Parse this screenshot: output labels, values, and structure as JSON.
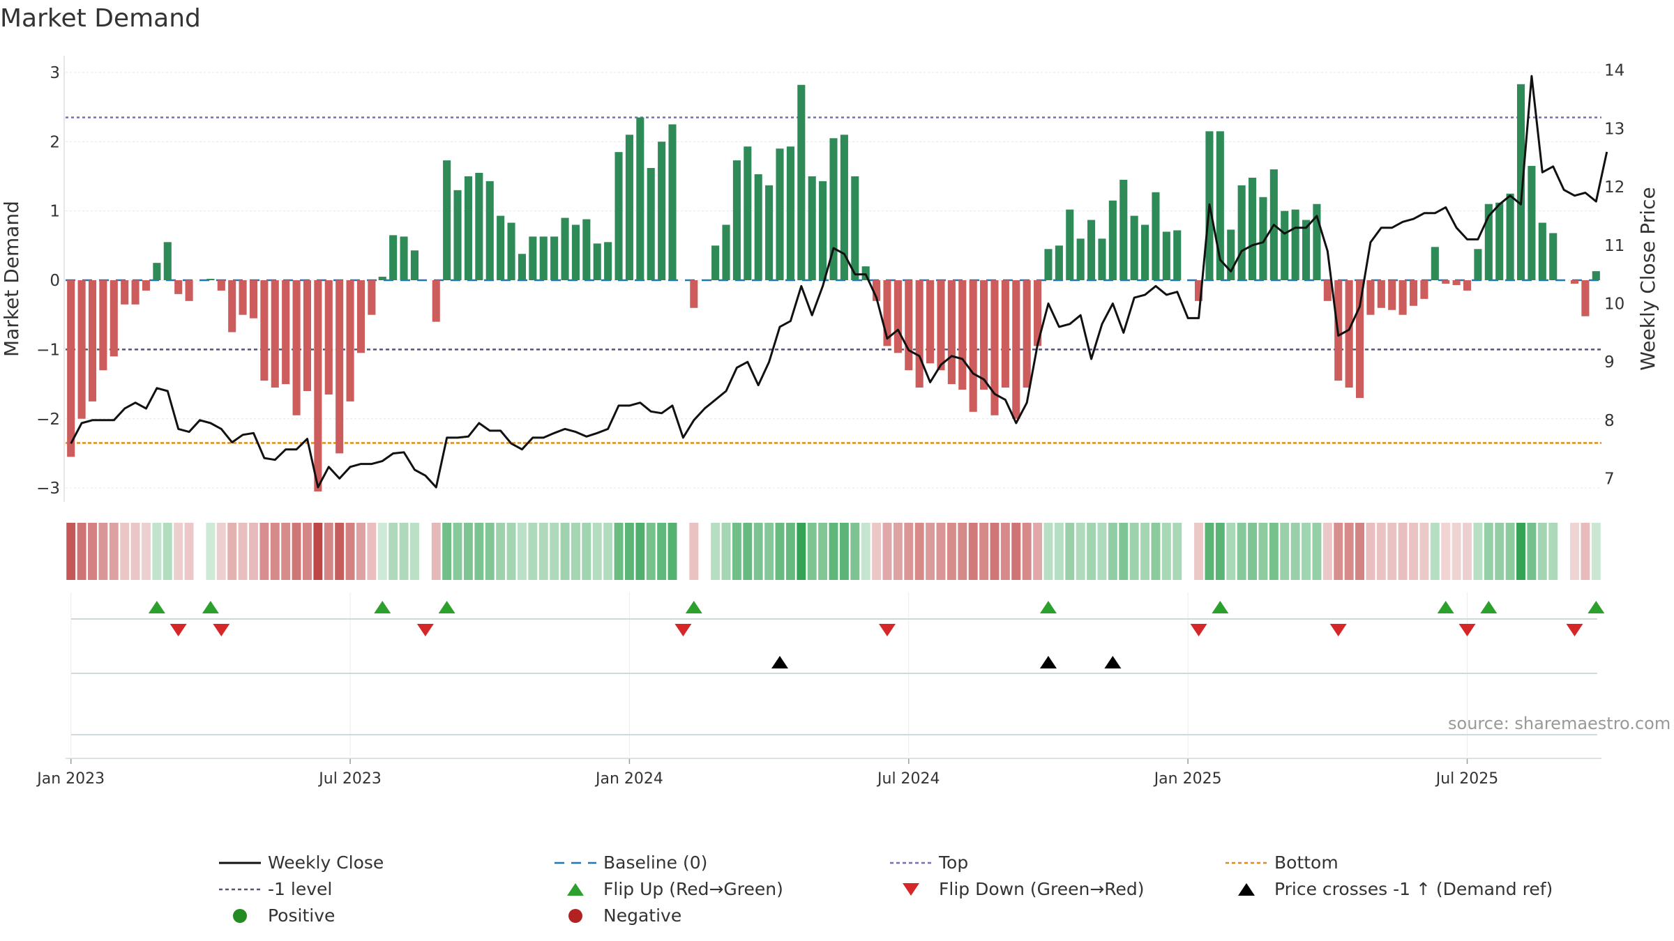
{
  "title": "Market Demand",
  "watermark": "source: sharemaestro.com",
  "colors": {
    "positive_bar": "#2e8b57",
    "negative_bar": "#cd5c5c",
    "price_line": "#111111",
    "baseline": "#1f77b4",
    "top_line": "#7070b8",
    "level_line": "#555577",
    "bottom_line": "#e08a1e",
    "flip_up": "#2ca02c",
    "flip_down": "#d62728",
    "price_cross": "#000000",
    "positive_dot": "#228b22",
    "negative_dot": "#b22222"
  },
  "chart_data": {
    "type": "bar+line",
    "title": "Market Demand",
    "ylabel_left": "Market Demand",
    "ylabel_right": "Weekly Close Price",
    "ylim_left": [
      -3.2,
      3.2
    ],
    "ylim_right": [
      6.6,
      14.2
    ],
    "yticks_left": [
      3,
      2,
      1,
      0,
      -1,
      -2,
      -3
    ],
    "ytick_labels_left": [
      "3",
      "2",
      "1",
      "0",
      "−1",
      "−2",
      "−3"
    ],
    "yticks_right": [
      14,
      13,
      12,
      11,
      10,
      9,
      8,
      7
    ],
    "ytick_labels_right": [
      "14",
      "13",
      "12",
      "11",
      "10",
      "9",
      "8",
      "7"
    ],
    "x_ticks": [
      {
        "week": 1,
        "label": "Jan 2023"
      },
      {
        "week": 27,
        "label": "Jul 2023"
      },
      {
        "week": 53,
        "label": "Jan 2024"
      },
      {
        "week": 79,
        "label": "Jul 2024"
      },
      {
        "week": 105,
        "label": "Jan 2025"
      },
      {
        "week": 131,
        "label": "Jul 2025"
      }
    ],
    "reference_lines": {
      "top": 2.35,
      "minus_one_level": -1.0,
      "bottom": -2.35,
      "baseline": 0
    },
    "demand": [
      -2.55,
      -2.0,
      -1.75,
      -1.3,
      -1.1,
      -0.35,
      -0.35,
      -0.15,
      0.25,
      0.55,
      -0.2,
      -0.3,
      0.0,
      0.02,
      -0.15,
      -0.75,
      -0.5,
      -0.55,
      -1.45,
      -1.55,
      -1.5,
      -1.95,
      -1.6,
      -3.05,
      -1.65,
      -2.5,
      -1.75,
      -1.05,
      -0.5,
      0.05,
      0.65,
      0.63,
      0.43,
      0.0,
      -0.6,
      1.73,
      1.3,
      1.5,
      1.55,
      1.43,
      0.93,
      0.83,
      0.38,
      0.63,
      0.63,
      0.63,
      0.9,
      0.8,
      0.88,
      0.53,
      0.55,
      1.85,
      2.1,
      2.35,
      1.62,
      2.0,
      2.25,
      0.0,
      -0.4,
      0.0,
      0.5,
      0.8,
      1.73,
      1.93,
      1.53,
      1.37,
      1.9,
      1.93,
      2.82,
      1.5,
      1.43,
      2.05,
      2.1,
      1.5,
      0.2,
      -0.3,
      -0.95,
      -1.05,
      -1.3,
      -1.55,
      -1.2,
      -1.3,
      -1.5,
      -1.58,
      -1.9,
      -1.58,
      -1.95,
      -1.55,
      -2.0,
      -1.55,
      -0.95,
      0.45,
      0.5,
      1.02,
      0.6,
      0.87,
      0.6,
      1.15,
      1.45,
      0.93,
      0.8,
      1.27,
      0.7,
      0.72,
      0.0,
      -0.3,
      2.15,
      2.15,
      0.73,
      1.37,
      1.48,
      1.2,
      1.6,
      1.0,
      1.02,
      0.87,
      1.1,
      -0.3,
      -1.45,
      -1.55,
      -1.7,
      -0.5,
      -0.4,
      -0.43,
      -0.5,
      -0.37,
      -0.27,
      0.48,
      -0.05,
      -0.07,
      -0.15,
      0.45,
      1.1,
      1.12,
      1.25,
      2.83,
      1.65,
      0.83,
      0.68,
      0.0,
      -0.05,
      -0.52,
      0.13
    ],
    "price": [
      7.6,
      7.95,
      8.0,
      8.0,
      8.0,
      8.2,
      8.3,
      8.2,
      8.55,
      8.5,
      7.85,
      7.8,
      8.0,
      7.95,
      7.85,
      7.62,
      7.75,
      7.78,
      7.35,
      7.32,
      7.5,
      7.5,
      7.68,
      6.85,
      7.2,
      7.0,
      7.2,
      7.25,
      7.25,
      7.3,
      7.43,
      7.45,
      7.15,
      7.05,
      6.85,
      7.7,
      7.7,
      7.72,
      7.95,
      7.82,
      7.82,
      7.6,
      7.5,
      7.7,
      7.7,
      7.78,
      7.85,
      7.8,
      7.72,
      7.78,
      7.85,
      8.25,
      8.25,
      8.3,
      8.15,
      8.12,
      8.25,
      7.7,
      8.0,
      8.2,
      8.35,
      8.5,
      8.9,
      9.0,
      8.6,
      9.0,
      9.6,
      9.7,
      10.3,
      9.8,
      10.3,
      10.95,
      10.85,
      10.5,
      10.5,
      10.1,
      9.4,
      9.55,
      9.2,
      9.1,
      8.65,
      8.95,
      9.1,
      9.05,
      8.8,
      8.7,
      8.45,
      8.35,
      7.95,
      8.3,
      9.3,
      10.0,
      9.6,
      9.65,
      9.8,
      9.05,
      9.65,
      10.0,
      9.5,
      10.1,
      10.15,
      10.3,
      10.15,
      10.2,
      9.75,
      9.75,
      11.7,
      10.75,
      10.55,
      10.9,
      11.0,
      11.05,
      11.35,
      11.2,
      11.3,
      11.3,
      11.5,
      10.9,
      9.45,
      9.55,
      9.95,
      11.05,
      11.3,
      11.3,
      11.4,
      11.45,
      11.55,
      11.55,
      11.65,
      11.3,
      11.1,
      11.1,
      11.5,
      11.7,
      11.85,
      11.7,
      13.9,
      12.25,
      12.35,
      11.95,
      11.85,
      11.9,
      11.75,
      12.6
    ],
    "flip_up_weeks": [
      9,
      14,
      30,
      36,
      59,
      92,
      108,
      129,
      133,
      143
    ],
    "flip_down_weeks": [
      11,
      15,
      34,
      58,
      77,
      106,
      119,
      131,
      141
    ],
    "price_cross_weeks": [
      67,
      92,
      98
    ]
  },
  "legend": {
    "items": [
      {
        "label": "Weekly Close",
        "key": "price_line"
      },
      {
        "label": "Baseline (0)",
        "key": "baseline"
      },
      {
        "label": "Top",
        "key": "top_line"
      },
      {
        "label": "Bottom",
        "key": "bottom_line"
      },
      {
        "label": "-1 level",
        "key": "level_line"
      },
      {
        "label": "Flip Up (Red→Green)",
        "key": "flip_up"
      },
      {
        "label": "Flip Down (Green→Red)",
        "key": "flip_down"
      },
      {
        "label": "Price crosses -1 ↑ (Demand ref)",
        "key": "price_cross"
      },
      {
        "label": "Positive",
        "key": "positive_dot"
      },
      {
        "label": "Negative",
        "key": "negative_dot"
      }
    ]
  }
}
